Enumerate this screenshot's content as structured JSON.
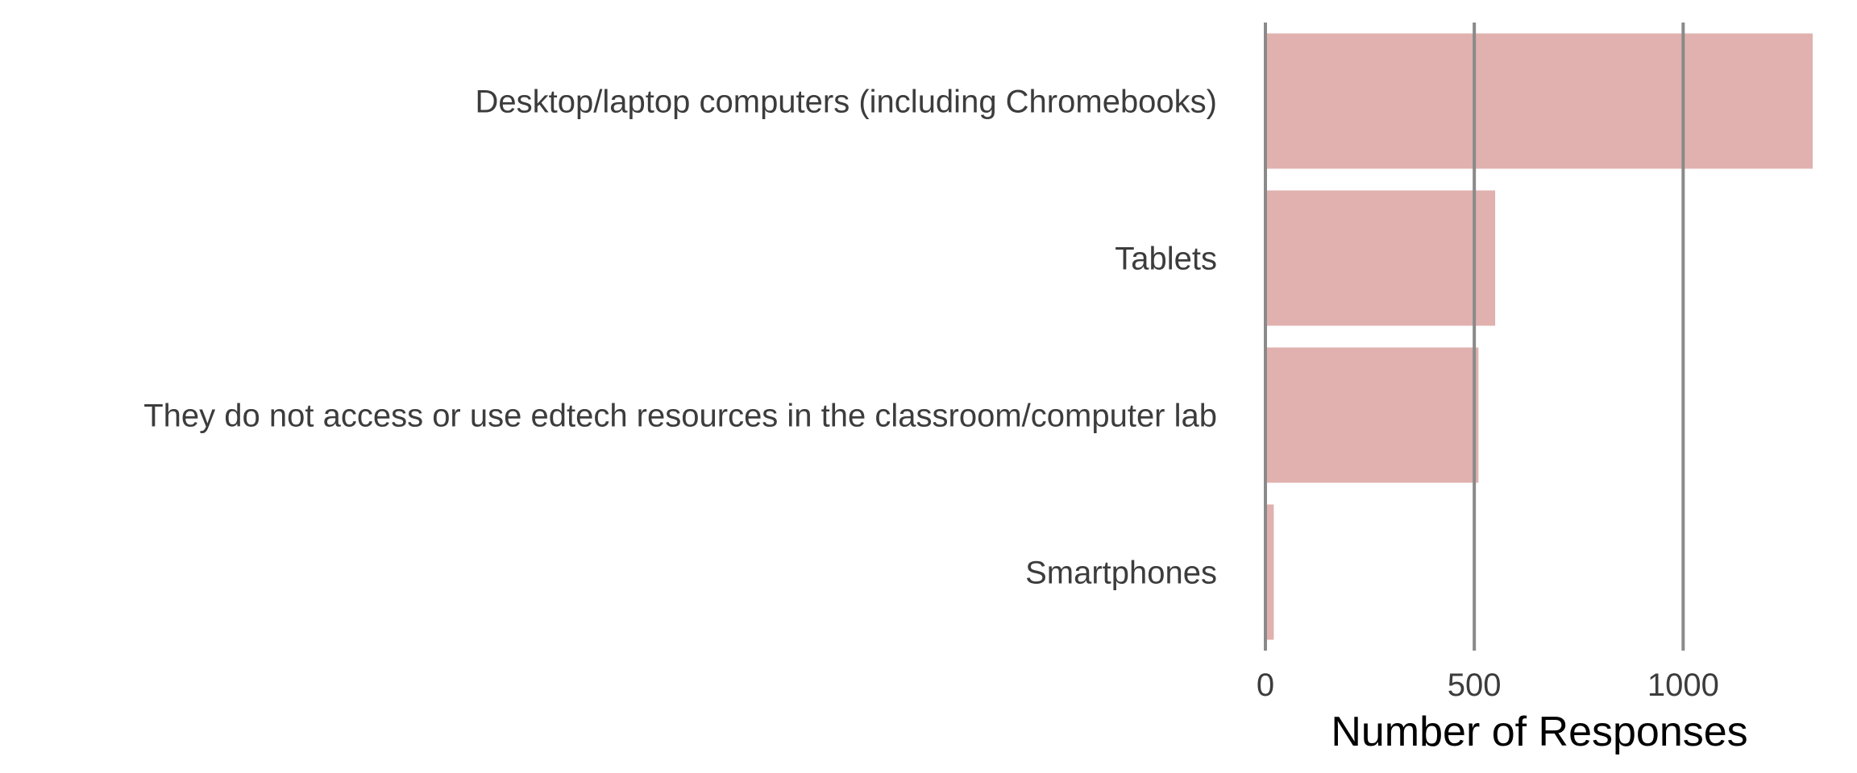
{
  "chart_data": {
    "type": "bar",
    "orientation": "horizontal",
    "categories": [
      "Desktop/laptop computers (including Chromebooks)",
      "Tablets",
      "They do not access or use edtech resources in the classroom/computer lab",
      "Smartphones"
    ],
    "values": [
      1310,
      550,
      510,
      20
    ],
    "xlabel": "Number of Responses",
    "ylabel": "",
    "xlim": [
      0,
      1310
    ],
    "xticks": [
      0,
      500,
      1000
    ],
    "xtick_labels": [
      "0",
      "500",
      "1000"
    ],
    "grid": "vertical",
    "bar_color": "#e0b1ae",
    "grid_color": "#8a8a8a"
  }
}
